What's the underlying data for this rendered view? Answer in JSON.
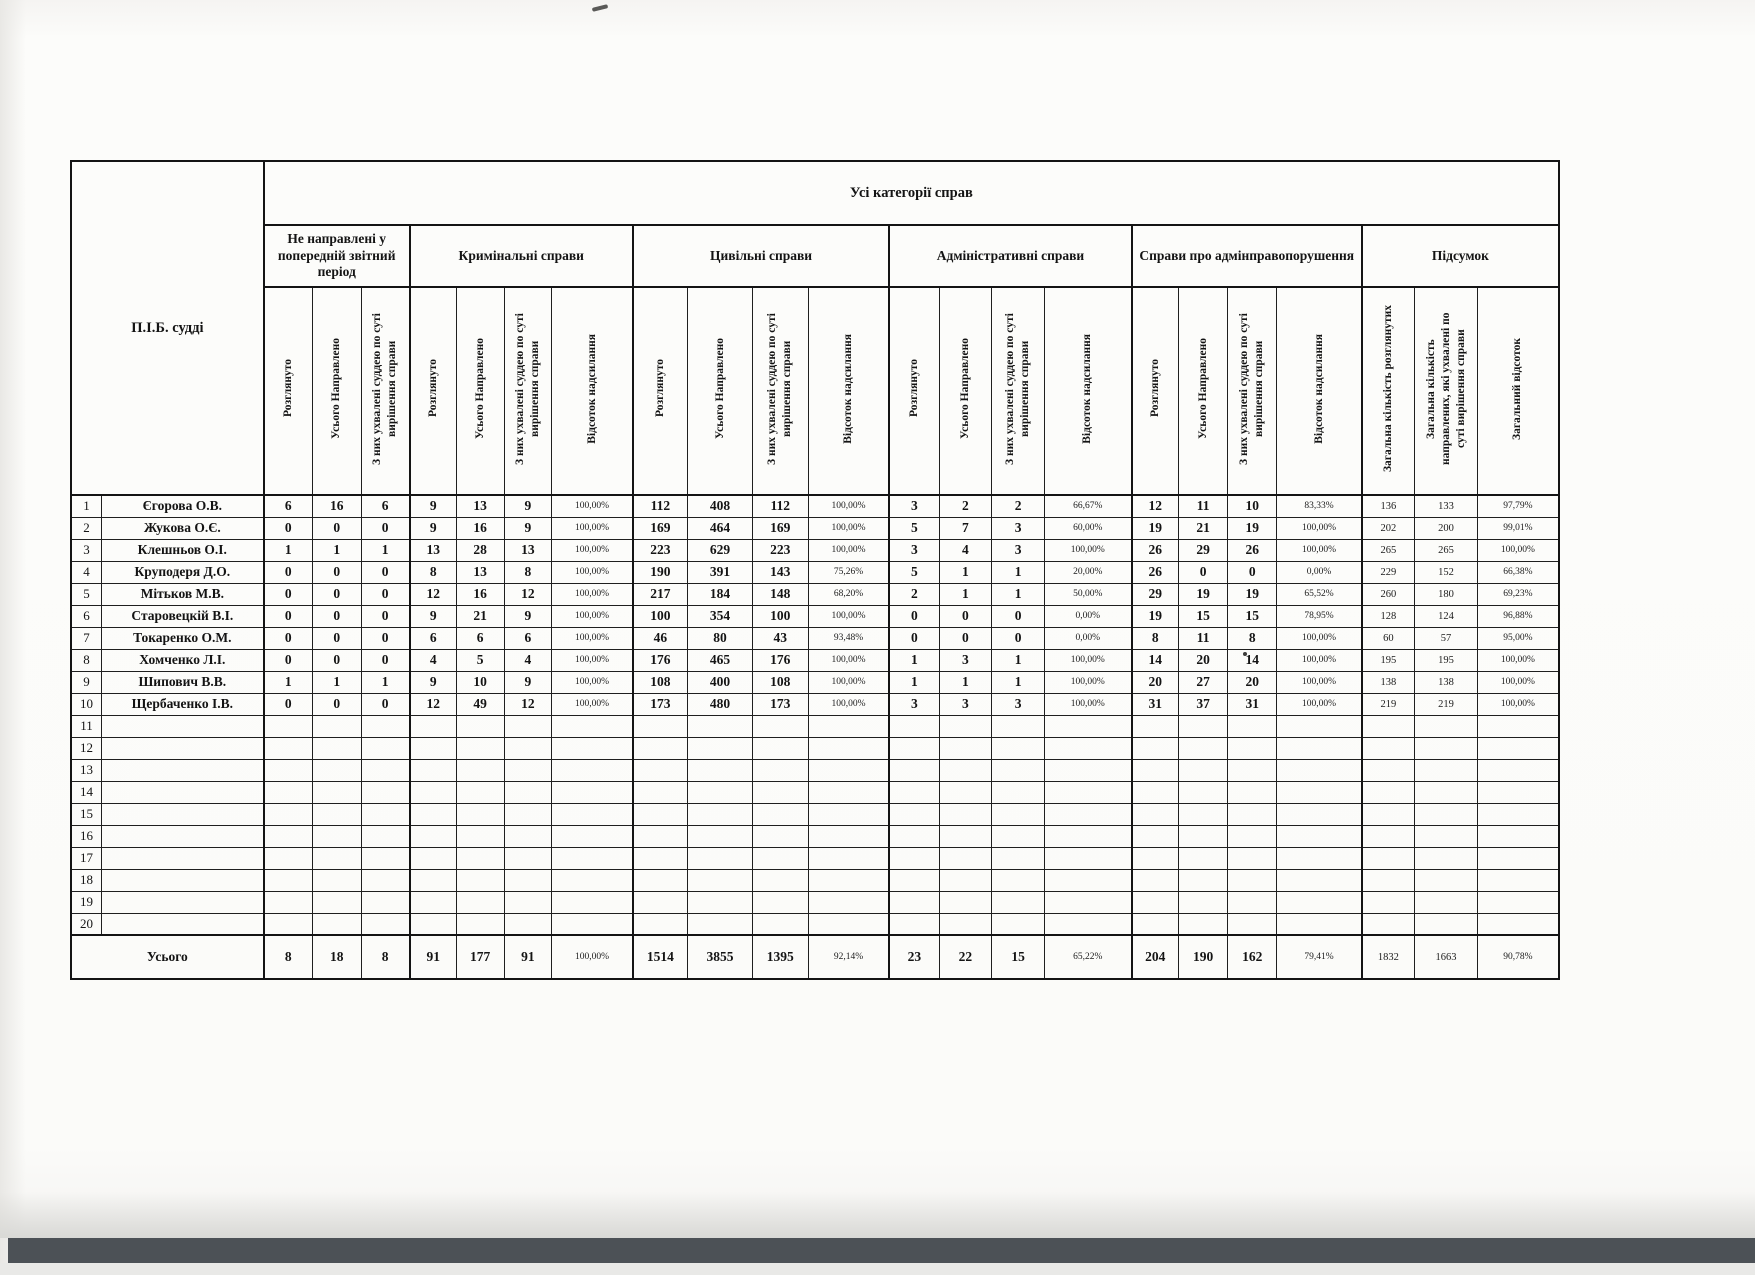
{
  "table": {
    "all_categories_title": "Усі категорії справ",
    "judge_column_label": "П.І.Б. судді",
    "groups": [
      {
        "label": "Не направлені у попередній звітний період",
        "cols": [
          "Розглянуто",
          "Усього Направлено",
          "З них ухвалені суддею по суті вирішення справи"
        ]
      },
      {
        "label": "Кримінальні справи",
        "cols": [
          "Розглянуто",
          "Усього Направлено",
          "З них ухвалені суддею по суті вирішення справи",
          "Відсоток надсилання"
        ]
      },
      {
        "label": "Цивільні справи",
        "cols": [
          "Розглянуто",
          "Усього Направлено",
          "З них ухвалені суддею по суті вирішення справи",
          "Відсоток надсилання"
        ]
      },
      {
        "label": "Адміністративні справи",
        "cols": [
          "Розглянуто",
          "Усього Направлено",
          "З них ухвалені суддею по суті вирішення справи",
          "Відсоток надсилання"
        ]
      },
      {
        "label": "Справи про адмінправопорушення",
        "cols": [
          "Розглянуто",
          "Усього Направлено",
          "З них ухвалені суддею по суті вирішення справи",
          "Відсоток надсилання"
        ]
      },
      {
        "label": "Підсумок",
        "cols": [
          "Загальна кількість розглянутих",
          "Загальна кількість направлених, які ухвалені по суті вирішення справи",
          "Загальний відсоток"
        ]
      }
    ],
    "rows": [
      {
        "num": "1",
        "name": "Єгорова О.В.",
        "values": [
          "6",
          "16",
          "6",
          "9",
          "13",
          "9",
          "100,00%",
          "112",
          "408",
          "112",
          "100,00%",
          "3",
          "2",
          "2",
          "66,67%",
          "12",
          "11",
          "10",
          "83,33%",
          "136",
          "133",
          "97,79%"
        ]
      },
      {
        "num": "2",
        "name": "Жукова О.Є.",
        "values": [
          "0",
          "0",
          "0",
          "9",
          "16",
          "9",
          "100,00%",
          "169",
          "464",
          "169",
          "100,00%",
          "5",
          "7",
          "3",
          "60,00%",
          "19",
          "21",
          "19",
          "100,00%",
          "202",
          "200",
          "99,01%"
        ]
      },
      {
        "num": "3",
        "name": "Клешньов О.І.",
        "values": [
          "1",
          "1",
          "1",
          "13",
          "28",
          "13",
          "100,00%",
          "223",
          "629",
          "223",
          "100,00%",
          "3",
          "4",
          "3",
          "100,00%",
          "26",
          "29",
          "26",
          "100,00%",
          "265",
          "265",
          "100,00%"
        ]
      },
      {
        "num": "4",
        "name": "Круподеря Д.О.",
        "values": [
          "0",
          "0",
          "0",
          "8",
          "13",
          "8",
          "100,00%",
          "190",
          "391",
          "143",
          "75,26%",
          "5",
          "1",
          "1",
          "20,00%",
          "26",
          "0",
          "0",
          "0,00%",
          "229",
          "152",
          "66,38%"
        ]
      },
      {
        "num": "5",
        "name": "Мітьков М.В.",
        "values": [
          "0",
          "0",
          "0",
          "12",
          "16",
          "12",
          "100,00%",
          "217",
          "184",
          "148",
          "68,20%",
          "2",
          "1",
          "1",
          "50,00%",
          "29",
          "19",
          "19",
          "65,52%",
          "260",
          "180",
          "69,23%"
        ]
      },
      {
        "num": "6",
        "name": "Старовецкій В.І.",
        "values": [
          "0",
          "0",
          "0",
          "9",
          "21",
          "9",
          "100,00%",
          "100",
          "354",
          "100",
          "100,00%",
          "0",
          "0",
          "0",
          "0,00%",
          "19",
          "15",
          "15",
          "78,95%",
          "128",
          "124",
          "96,88%"
        ]
      },
      {
        "num": "7",
        "name": "Токаренко О.М.",
        "values": [
          "0",
          "0",
          "0",
          "6",
          "6",
          "6",
          "100,00%",
          "46",
          "80",
          "43",
          "93,48%",
          "0",
          "0",
          "0",
          "0,00%",
          "8",
          "11",
          "8",
          "100,00%",
          "60",
          "57",
          "95,00%"
        ]
      },
      {
        "num": "8",
        "name": "Хомченко Л.І.",
        "values": [
          "0",
          "0",
          "0",
          "4",
          "5",
          "4",
          "100,00%",
          "176",
          "465",
          "176",
          "100,00%",
          "1",
          "3",
          "1",
          "100,00%",
          "14",
          "20",
          "14",
          "100,00%",
          "195",
          "195",
          "100,00%"
        ]
      },
      {
        "num": "9",
        "name": "Шипович В.В.",
        "values": [
          "1",
          "1",
          "1",
          "9",
          "10",
          "9",
          "100,00%",
          "108",
          "400",
          "108",
          "100,00%",
          "1",
          "1",
          "1",
          "100,00%",
          "20",
          "27",
          "20",
          "100,00%",
          "138",
          "138",
          "100,00%"
        ]
      },
      {
        "num": "10",
        "name": "Щербаченко І.В.",
        "values": [
          "0",
          "0",
          "0",
          "12",
          "49",
          "12",
          "100,00%",
          "173",
          "480",
          "173",
          "100,00%",
          "3",
          "3",
          "3",
          "100,00%",
          "31",
          "37",
          "31",
          "100,00%",
          "219",
          "219",
          "100,00%"
        ]
      }
    ],
    "empty_row_nums": [
      "11",
      "12",
      "13",
      "14",
      "15",
      "16",
      "17",
      "18",
      "19",
      "20"
    ],
    "totals_label": "Усього",
    "totals_values": [
      "8",
      "18",
      "8",
      "91",
      "177",
      "91",
      "100,00%",
      "1514",
      "3855",
      "1395",
      "92,14%",
      "23",
      "22",
      "15",
      "65,22%",
      "204",
      "190",
      "162",
      "79,41%",
      "1832",
      "1663",
      "90,78%"
    ]
  }
}
